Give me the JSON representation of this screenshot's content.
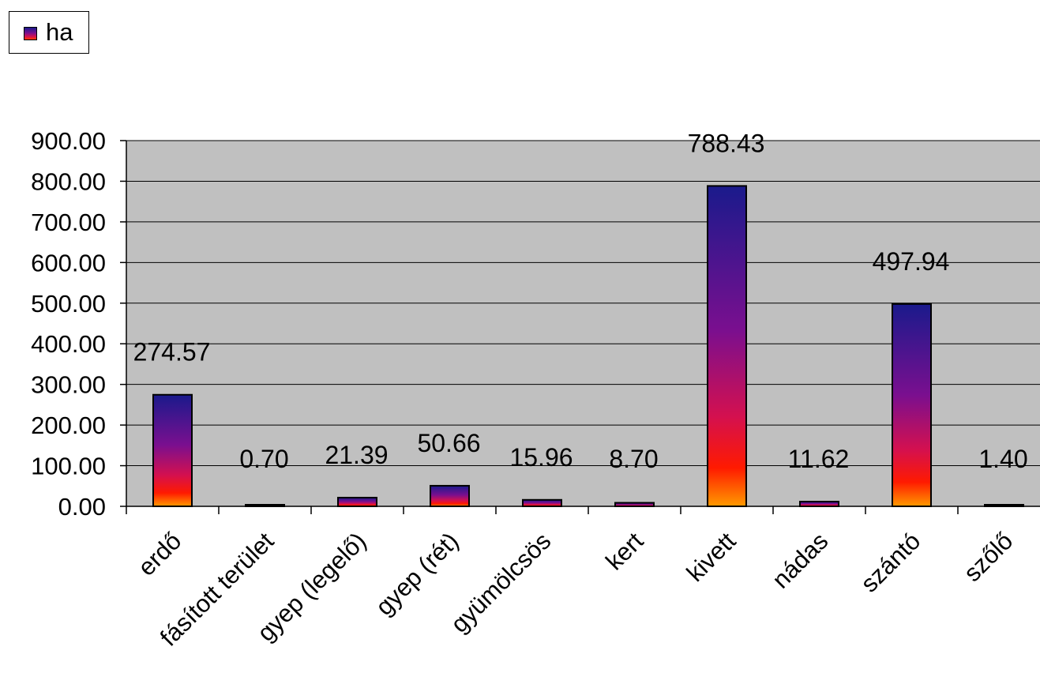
{
  "chart_data": {
    "type": "bar",
    "title": "",
    "xlabel": "",
    "ylabel": "",
    "ylim": [
      0,
      900
    ],
    "yticks": [
      "0.00",
      "100.00",
      "200.00",
      "300.00",
      "400.00",
      "500.00",
      "600.00",
      "700.00",
      "800.00",
      "900.00"
    ],
    "categories": [
      "erdő",
      "fásított terület",
      "gyep (legelő)",
      "gyep (rét)",
      "gyümölcsös",
      "kert",
      "kivett",
      "nádas",
      "szántó",
      "szőlő"
    ],
    "series": [
      {
        "name": "ha",
        "values": [
          274.57,
          0.7,
          21.39,
          50.66,
          15.96,
          8.7,
          788.43,
          11.62,
          497.94,
          1.4
        ],
        "labels": [
          "274.57",
          "0.70",
          "21.39",
          "50.66",
          "15.96",
          "8.70",
          "788.43",
          "11.62",
          "497.94",
          "1.40"
        ]
      }
    ],
    "grid": true,
    "legend_position": "top-left",
    "plot_background": "#c0c0c0",
    "bar_gradient": [
      "#1a1a8c",
      "#7a0f8f",
      "#d4104f",
      "#ff3a00",
      "#ff9a00"
    ]
  }
}
